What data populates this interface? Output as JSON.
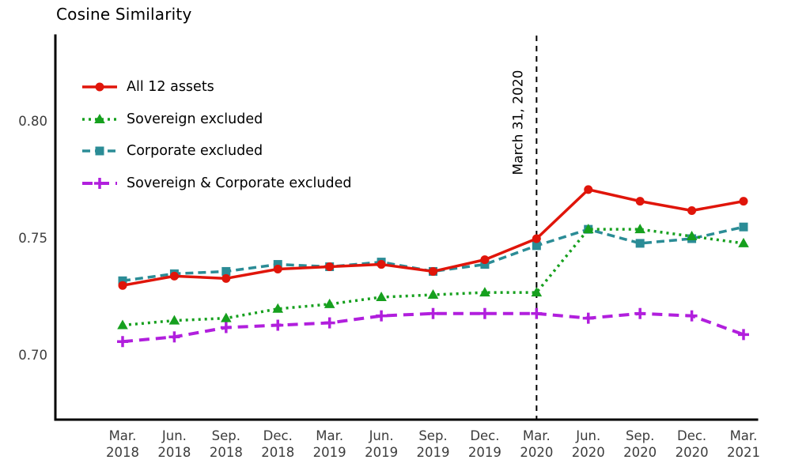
{
  "chart_data": {
    "type": "line",
    "title": "Cosine Similarity",
    "xlabel": "",
    "ylabel": "",
    "grid": false,
    "legend_position": "top-left",
    "y_ticks": [
      0.7,
      0.75,
      0.8
    ],
    "ylim": [
      0.673,
      0.837
    ],
    "x_tick_labels": [
      [
        "Mar.",
        "2018"
      ],
      [
        "Jun.",
        "2018"
      ],
      [
        "Sep.",
        "2018"
      ],
      [
        "Dec.",
        "2018"
      ],
      [
        "Mar.",
        "2019"
      ],
      [
        "Jun.",
        "2019"
      ],
      [
        "Sep.",
        "2019"
      ],
      [
        "Dec.",
        "2019"
      ],
      [
        "Mar.",
        "2020"
      ],
      [
        "Jun.",
        "2020"
      ],
      [
        "Sep.",
        "2020"
      ],
      [
        "Dec.",
        "2020"
      ],
      [
        "Mar.",
        "2021"
      ]
    ],
    "annotation": {
      "label": "March 31, 2020",
      "x_index": 8,
      "style": "vertical-dashed-line"
    },
    "series": [
      {
        "name": "All 12 assets",
        "color": "#e0150a",
        "line_style": "solid",
        "marker": "circle",
        "width": 3.5,
        "values": [
          0.73,
          0.734,
          0.733,
          0.737,
          0.738,
          0.739,
          0.736,
          0.741,
          0.75,
          0.771,
          0.766,
          0.762,
          0.766
        ]
      },
      {
        "name": "Sovereign excluded",
        "color": "#16a01e",
        "line_style": "dotted",
        "marker": "triangle",
        "width": 3.5,
        "values": [
          0.713,
          0.715,
          0.716,
          0.72,
          0.722,
          0.725,
          0.726,
          0.727,
          0.727,
          0.754,
          0.754,
          0.751,
          0.748
        ]
      },
      {
        "name": "Corporate excluded",
        "color": "#2b8c96",
        "line_style": "dashed",
        "marker": "square",
        "width": 3.5,
        "values": [
          0.732,
          0.735,
          0.736,
          0.739,
          0.738,
          0.74,
          0.736,
          0.739,
          0.747,
          0.754,
          0.748,
          0.75,
          0.755
        ]
      },
      {
        "name": "Sovereign & Corporate excluded",
        "color": "#b11fdd",
        "line_style": "longdash",
        "marker": "plus",
        "width": 4,
        "values": [
          0.706,
          0.708,
          0.712,
          0.713,
          0.714,
          0.717,
          0.718,
          0.718,
          0.718,
          0.716,
          0.718,
          0.717,
          0.709
        ]
      }
    ]
  }
}
